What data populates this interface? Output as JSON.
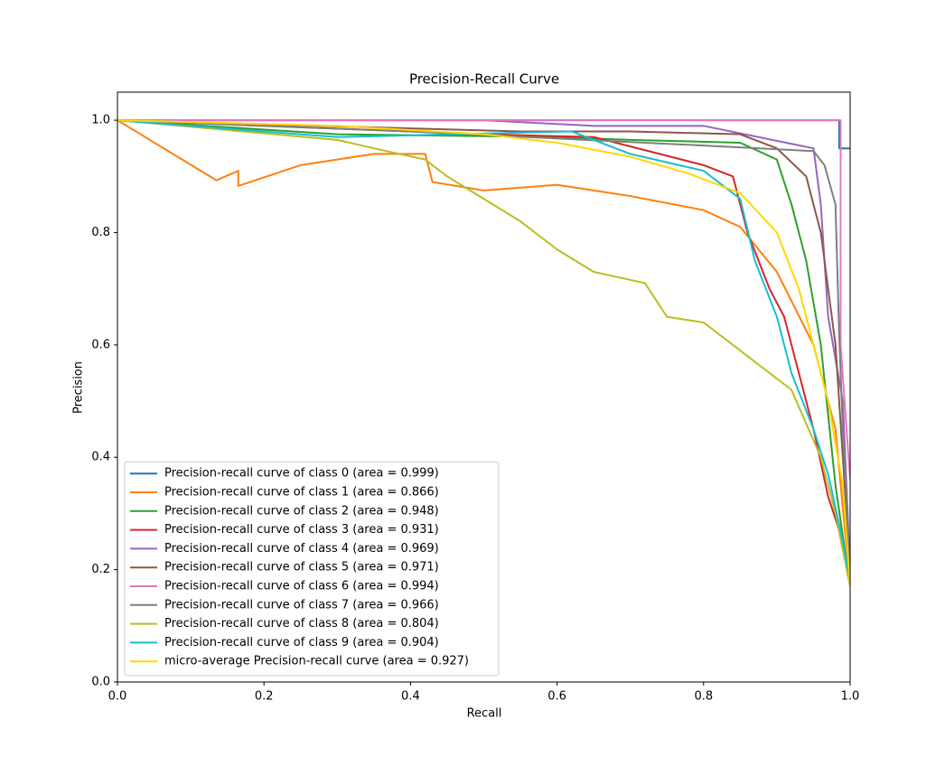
{
  "chart_data": {
    "type": "line",
    "title": "Precision-Recall Curve",
    "xlabel": "Recall",
    "ylabel": "Precision",
    "xlim": [
      0,
      1
    ],
    "ylim": [
      0,
      1.05
    ],
    "xticks": [
      {
        "value": 0,
        "label": "0.0"
      },
      0.2,
      0.4,
      0.6,
      0.8,
      {
        "value": 1,
        "label": "1.0"
      }
    ],
    "yticks": [
      {
        "value": 0,
        "label": "0.0"
      },
      0.2,
      0.4,
      0.6,
      0.8,
      {
        "value": 1,
        "label": "1.0"
      }
    ],
    "grid": false,
    "legend": "lower left",
    "series": [
      {
        "name": "Precision-recall curve of class 0 (area = 0.999)",
        "color": "#1f77b4",
        "x": [
          0,
          0.985,
          0.985,
          1
        ],
        "values": [
          1,
          1,
          0.95,
          0.95
        ]
      },
      {
        "name": "Precision-recall curve of class 1 (area = 0.866)",
        "color": "#ff7f0e",
        "x": [
          0,
          0.135,
          0.165,
          0.165,
          0.25,
          0.35,
          0.42,
          0.43,
          0.5,
          0.6,
          0.7,
          0.8,
          0.85,
          0.9,
          0.95,
          0.98,
          1
        ],
        "values": [
          1,
          0.893,
          0.91,
          0.883,
          0.92,
          0.94,
          0.94,
          0.89,
          0.875,
          0.885,
          0.865,
          0.84,
          0.81,
          0.73,
          0.6,
          0.45,
          0.17
        ]
      },
      {
        "name": "Precision-recall curve of class 2 (area = 0.948)",
        "color": "#2ca02c",
        "x": [
          0,
          0.3,
          0.6,
          0.7,
          0.85,
          0.9,
          0.92,
          0.94,
          0.96,
          0.98,
          1
        ],
        "values": [
          1,
          0.975,
          0.97,
          0.965,
          0.96,
          0.93,
          0.85,
          0.75,
          0.6,
          0.35,
          0.17
        ]
      },
      {
        "name": "Precision-recall curve of class 3 (area = 0.931)",
        "color": "#d62728",
        "x": [
          0,
          0.5,
          0.65,
          0.8,
          0.84,
          0.86,
          0.89,
          0.91,
          0.93,
          0.95,
          0.97,
          0.99,
          1
        ],
        "values": [
          1,
          0.975,
          0.97,
          0.92,
          0.9,
          0.8,
          0.7,
          0.65,
          0.55,
          0.45,
          0.33,
          0.25,
          0.18
        ]
      },
      {
        "name": "Precision-recall curve of class 4 (area = 0.969)",
        "color": "#9467bd",
        "x": [
          0,
          0.5,
          0.65,
          0.8,
          0.95,
          0.96,
          0.97,
          0.99,
          1
        ],
        "values": [
          1,
          1,
          0.99,
          0.99,
          0.95,
          0.85,
          0.65,
          0.5,
          0.2
        ]
      },
      {
        "name": "Precision-recall curve of class 5 (area = 0.971)",
        "color": "#8c564b",
        "x": [
          0,
          0.55,
          0.7,
          0.85,
          0.9,
          0.94,
          0.96,
          0.98,
          0.99,
          1
        ],
        "values": [
          1,
          0.98,
          0.98,
          0.975,
          0.95,
          0.9,
          0.8,
          0.6,
          0.4,
          0.2
        ]
      },
      {
        "name": "Precision-recall curve of class 6 (area = 0.994)",
        "color": "#e377c2",
        "x": [
          0,
          0.987,
          0.987,
          1
        ],
        "values": [
          1,
          1,
          0.6,
          0.36
        ]
      },
      {
        "name": "Precision-recall curve of class 7 (area = 0.966)",
        "color": "#7f7f7f",
        "x": [
          0,
          0.4,
          0.8,
          0.95,
          0.965,
          0.98,
          0.985,
          0.99,
          1
        ],
        "values": [
          1,
          0.98,
          0.955,
          0.945,
          0.92,
          0.85,
          0.62,
          0.45,
          0.2
        ]
      },
      {
        "name": "Precision-recall curve of class 8 (area = 0.804)",
        "color": "#bcbd22",
        "x": [
          0,
          0.3,
          0.35,
          0.42,
          0.45,
          0.5,
          0.55,
          0.6,
          0.65,
          0.72,
          0.75,
          0.8,
          0.86,
          0.92,
          0.96,
          0.98,
          1
        ],
        "values": [
          1,
          0.965,
          0.95,
          0.93,
          0.9,
          0.86,
          0.82,
          0.77,
          0.73,
          0.71,
          0.65,
          0.64,
          0.58,
          0.52,
          0.4,
          0.3,
          0.17
        ]
      },
      {
        "name": "Precision-recall curve of class 9 (area = 0.904)",
        "color": "#17becf",
        "x": [
          0,
          0.3,
          0.62,
          0.7,
          0.8,
          0.85,
          0.87,
          0.9,
          0.92,
          0.95,
          0.97,
          0.99,
          1
        ],
        "values": [
          1,
          0.97,
          0.98,
          0.94,
          0.91,
          0.86,
          0.75,
          0.65,
          0.55,
          0.45,
          0.37,
          0.25,
          0.18
        ]
      },
      {
        "name": "micro-average Precision-recall curve (area = 0.927)",
        "color": "#ffd700",
        "x": [
          0,
          0.3,
          0.5,
          0.6,
          0.7,
          0.78,
          0.85,
          0.9,
          0.93,
          0.95,
          0.97,
          0.99,
          1
        ],
        "values": [
          1,
          0.99,
          0.975,
          0.96,
          0.935,
          0.905,
          0.87,
          0.8,
          0.7,
          0.6,
          0.5,
          0.35,
          0.17
        ]
      }
    ]
  }
}
